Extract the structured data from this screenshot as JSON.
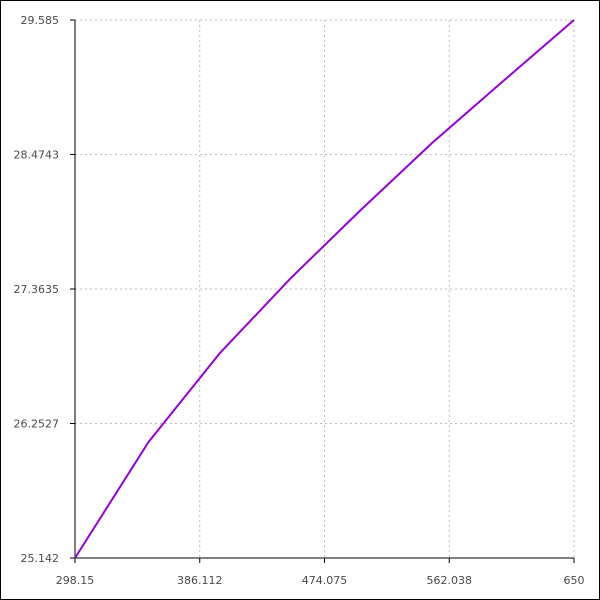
{
  "colors": {
    "line": "#9400d3",
    "grid": "#bdbdbd",
    "axis": "#000000",
    "label": "#4a4a4a",
    "background": "#ffffff"
  },
  "chart_data": {
    "type": "line",
    "title": "",
    "xlabel": "",
    "ylabel": "",
    "xlim": [
      298.15,
      650
    ],
    "ylim": [
      25.142,
      29.585
    ],
    "grid": true,
    "legend": "none",
    "x_ticks": [
      298.15,
      386.112,
      474.075,
      562.038,
      650
    ],
    "x_tick_labels": [
      "298.15",
      "386.112",
      "474.075",
      "562.038",
      "650"
    ],
    "y_ticks": [
      25.142,
      26.2527,
      27.3635,
      28.4743,
      29.585
    ],
    "y_tick_labels": [
      "25.142",
      "26.2527",
      "27.3635",
      "28.4743",
      "29.585"
    ],
    "series": [
      {
        "x": [
          298.15,
          350,
          400,
          450,
          500,
          550,
          600,
          650
        ],
        "y": [
          25.142,
          26.1,
          26.83,
          27.45,
          28.02,
          28.57,
          29.08,
          29.585
        ]
      }
    ]
  }
}
